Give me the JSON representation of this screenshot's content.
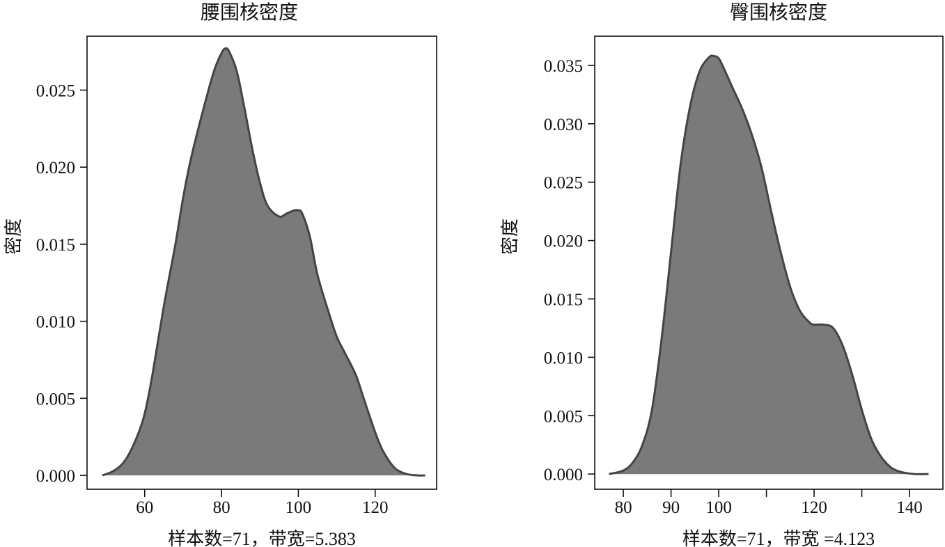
{
  "chart_data": [
    {
      "type": "area",
      "title": "腰围核密度",
      "xlabel": "样本数=71，带宽=5.383",
      "ylabel": "密度",
      "xlim": [
        45,
        136
      ],
      "ylim": [
        -0.0009,
        0.0285
      ],
      "xticks": [
        60,
        80,
        100,
        120
      ],
      "yticks": [
        0.0,
        0.005,
        0.01,
        0.015,
        0.02,
        0.025
      ],
      "ytick_labels": [
        "0.000",
        "0.005",
        "0.010",
        "0.015",
        "0.020",
        "0.025"
      ],
      "fill_color": "#7a7a7a",
      "line_color": "#444444",
      "grid": false,
      "x": [
        49,
        52,
        55,
        58,
        60,
        62,
        65,
        68,
        70,
        72,
        75,
        78,
        80,
        81,
        82,
        84,
        86,
        88,
        90,
        92,
        95,
        97,
        99,
        100,
        101,
        103,
        105,
        108,
        110,
        112,
        115,
        117,
        120,
        122,
        125,
        128,
        131,
        133
      ],
      "y": [
        0.0,
        0.0003,
        0.001,
        0.0025,
        0.004,
        0.0065,
        0.011,
        0.015,
        0.018,
        0.0205,
        0.0235,
        0.0262,
        0.0274,
        0.0277,
        0.0275,
        0.0262,
        0.0238,
        0.0212,
        0.019,
        0.0175,
        0.0168,
        0.017,
        0.0172,
        0.0172,
        0.017,
        0.0155,
        0.013,
        0.0105,
        0.009,
        0.008,
        0.0065,
        0.005,
        0.0028,
        0.0016,
        0.0005,
        0.0001,
        0.0,
        0.0
      ]
    },
    {
      "type": "area",
      "title": "臀围核密度",
      "xlabel": "样本数=71，带宽 =4.123",
      "ylabel": "密度",
      "xlim": [
        74,
        147
      ],
      "ylim": [
        -0.0013,
        0.0375
      ],
      "xticks": [
        80,
        90,
        100,
        110,
        120,
        130,
        140
      ],
      "xtick_labels": [
        "80",
        "90",
        "100",
        "",
        "120",
        "",
        "140"
      ],
      "yticks": [
        0.0,
        0.005,
        0.01,
        0.015,
        0.02,
        0.025,
        0.03,
        0.035
      ],
      "ytick_labels": [
        "0.000",
        "0.005",
        "0.010",
        "0.015",
        "0.020",
        "0.025",
        "0.030",
        "0.035"
      ],
      "fill_color": "#7a7a7a",
      "line_color": "#444444",
      "grid": false,
      "x": [
        77,
        80,
        82,
        84,
        86,
        88,
        90,
        92,
        94,
        96,
        98,
        99,
        100,
        101,
        103,
        105,
        107,
        109,
        111,
        113,
        115,
        117,
        119,
        120,
        122,
        124,
        126,
        128,
        130,
        132,
        134,
        136,
        138,
        141,
        144
      ],
      "y": [
        0.0,
        0.0003,
        0.001,
        0.0025,
        0.0055,
        0.0115,
        0.019,
        0.0265,
        0.0315,
        0.0345,
        0.0357,
        0.0358,
        0.0356,
        0.0348,
        0.033,
        0.0312,
        0.029,
        0.0262,
        0.0225,
        0.019,
        0.016,
        0.014,
        0.013,
        0.0128,
        0.0128,
        0.0125,
        0.011,
        0.0085,
        0.0055,
        0.003,
        0.0015,
        0.0006,
        0.0002,
        0.0,
        0.0
      ]
    }
  ]
}
